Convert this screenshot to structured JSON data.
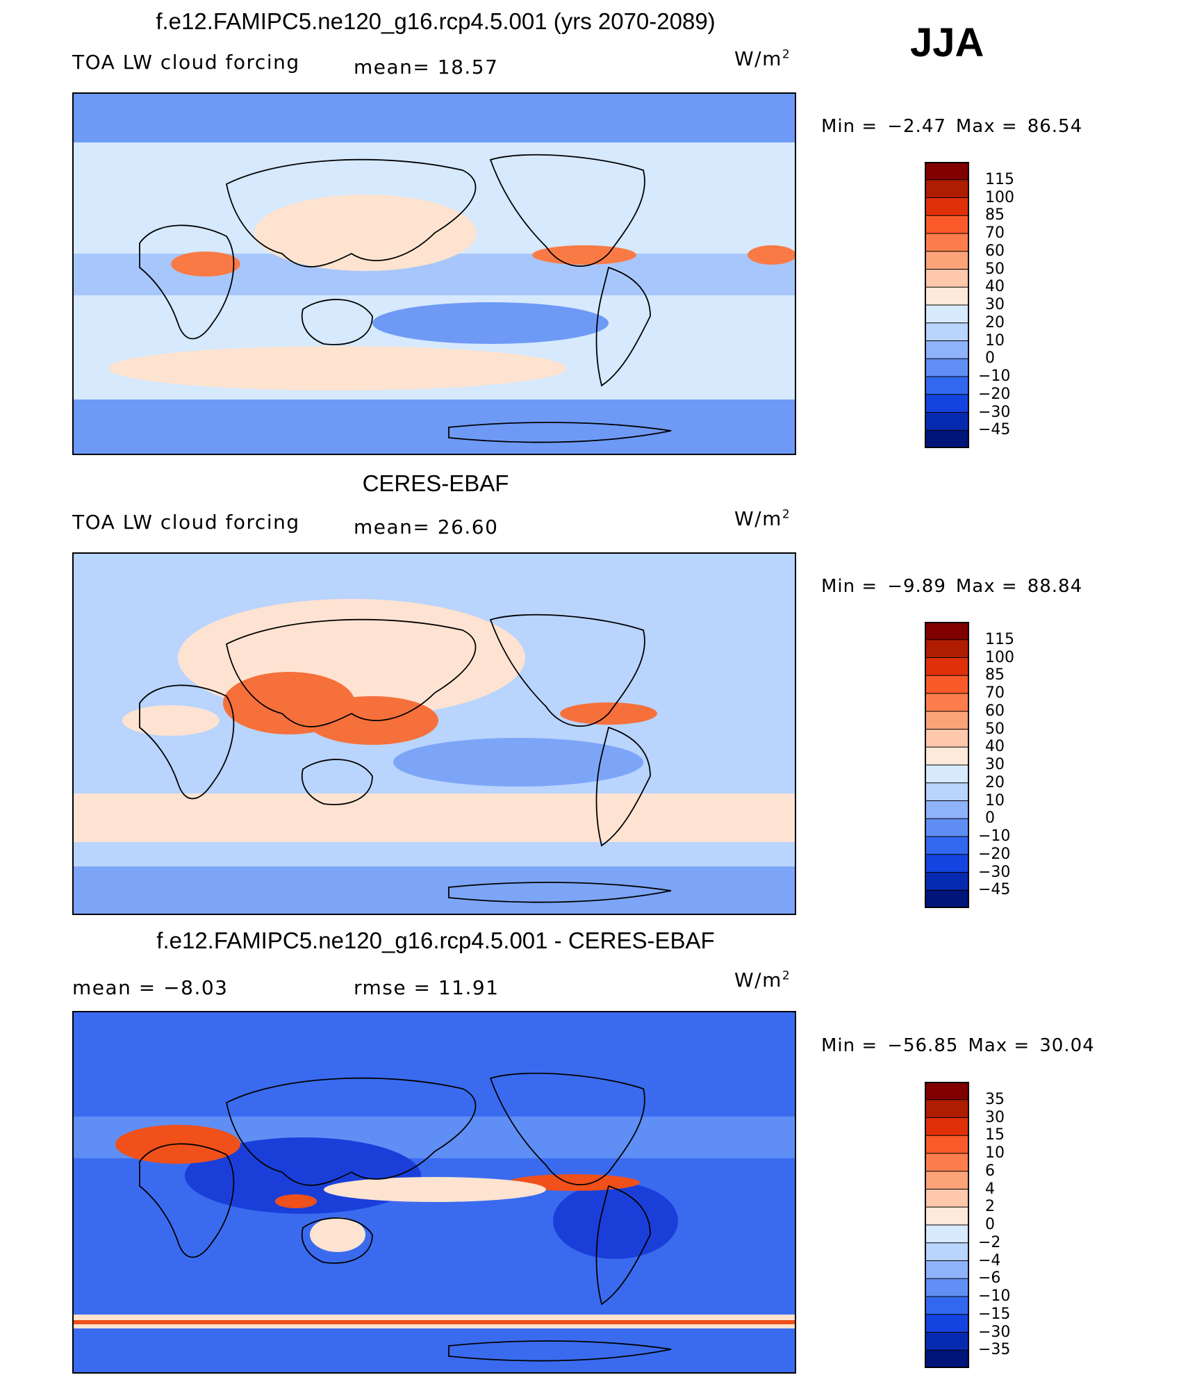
{
  "season": "JJA",
  "panels": [
    {
      "title": "f.e12.FAMIPC5.ne120_g16.rcp4.5.001 (yrs 2070-2089)",
      "left_label": "TOA LW cloud forcing",
      "mid_label": "mean=   18.57",
      "units_base": "W/m",
      "units_exp": "2",
      "min_label": "Min  =",
      "min_value": "−2.47",
      "max_label": "Max  =",
      "max_value": "86.54",
      "colorbar": {
        "ticks": [
          "115",
          "100",
          "85",
          "70",
          "60",
          "50",
          "40",
          "30",
          "20",
          "10",
          "0",
          "−10",
          "−20",
          "−30",
          "−45"
        ],
        "colors": [
          "#800000",
          "#b01c00",
          "#e0300a",
          "#fa5a28",
          "#fd7d4d",
          "#fda37a",
          "#fec8ac",
          "#feeada",
          "#d8eafd",
          "#b9d4fd",
          "#8fb3fb",
          "#5f8ff5",
          "#3168ef",
          "#1444df",
          "#072bb0",
          "#00157a"
        ]
      },
      "map_colors": {
        "base": "#a7c7fc",
        "ocean": "#d6e9fd",
        "cool": "#6e9af6",
        "warm": "#fde3d0",
        "hot": "#fa7a46",
        "land_outline": "#000000"
      }
    },
    {
      "title": "CERES-EBAF",
      "left_label": "TOA LW cloud forcing",
      "mid_label": "mean=   26.60",
      "units_base": "W/m",
      "units_exp": "2",
      "min_label": "Min  =",
      "min_value": "−9.89",
      "max_label": "Max  =",
      "max_value": "88.84",
      "colorbar": {
        "ticks": [
          "115",
          "100",
          "85",
          "70",
          "60",
          "50",
          "40",
          "30",
          "20",
          "10",
          "0",
          "−10",
          "−20",
          "−30",
          "−45"
        ],
        "colors": [
          "#800000",
          "#b01c00",
          "#e0300a",
          "#fa5a28",
          "#fd7d4d",
          "#fda37a",
          "#fec8ac",
          "#feeada",
          "#d8eafd",
          "#b9d4fd",
          "#8fb3fb",
          "#5f8ff5",
          "#3168ef",
          "#1444df",
          "#072bb0",
          "#00157a"
        ]
      },
      "map_colors": {
        "base": "#b9d4fd",
        "ocean": "#d6e9fd",
        "cool": "#7da5f7",
        "warm": "#fee3d2",
        "hot": "#f6703b",
        "land_outline": "#000000"
      }
    },
    {
      "title": "f.e12.FAMIPC5.ne120_g16.rcp4.5.001 - CERES-EBAF",
      "left_label": "mean  =    −8.03",
      "mid_label": "rmse  =    11.91",
      "units_base": "W/m",
      "units_exp": "2",
      "min_label": "Min  =",
      "min_value": "−56.85",
      "max_label": "Max  =",
      "max_value": "30.04",
      "colorbar": {
        "ticks": [
          "35",
          "30",
          "15",
          "10",
          "6",
          "4",
          "2",
          "0",
          "−2",
          "−4",
          "−6",
          "−10",
          "−15",
          "−30",
          "−35"
        ],
        "colors": [
          "#800000",
          "#b01c00",
          "#e0300a",
          "#fa5a28",
          "#fd7d4d",
          "#fda37a",
          "#fec8ac",
          "#feeada",
          "#d8eafd",
          "#b9d4fd",
          "#8fb3fb",
          "#5f8ff5",
          "#3168ef",
          "#1444df",
          "#072bb0",
          "#00157a"
        ]
      },
      "map_colors": {
        "base": "#3a6bef",
        "ocean": "#5f8ff5",
        "cool": "#1a3fd9",
        "warm": "#fde3d0",
        "hot": "#f0501a",
        "land_outline": "#000000"
      }
    }
  ]
}
